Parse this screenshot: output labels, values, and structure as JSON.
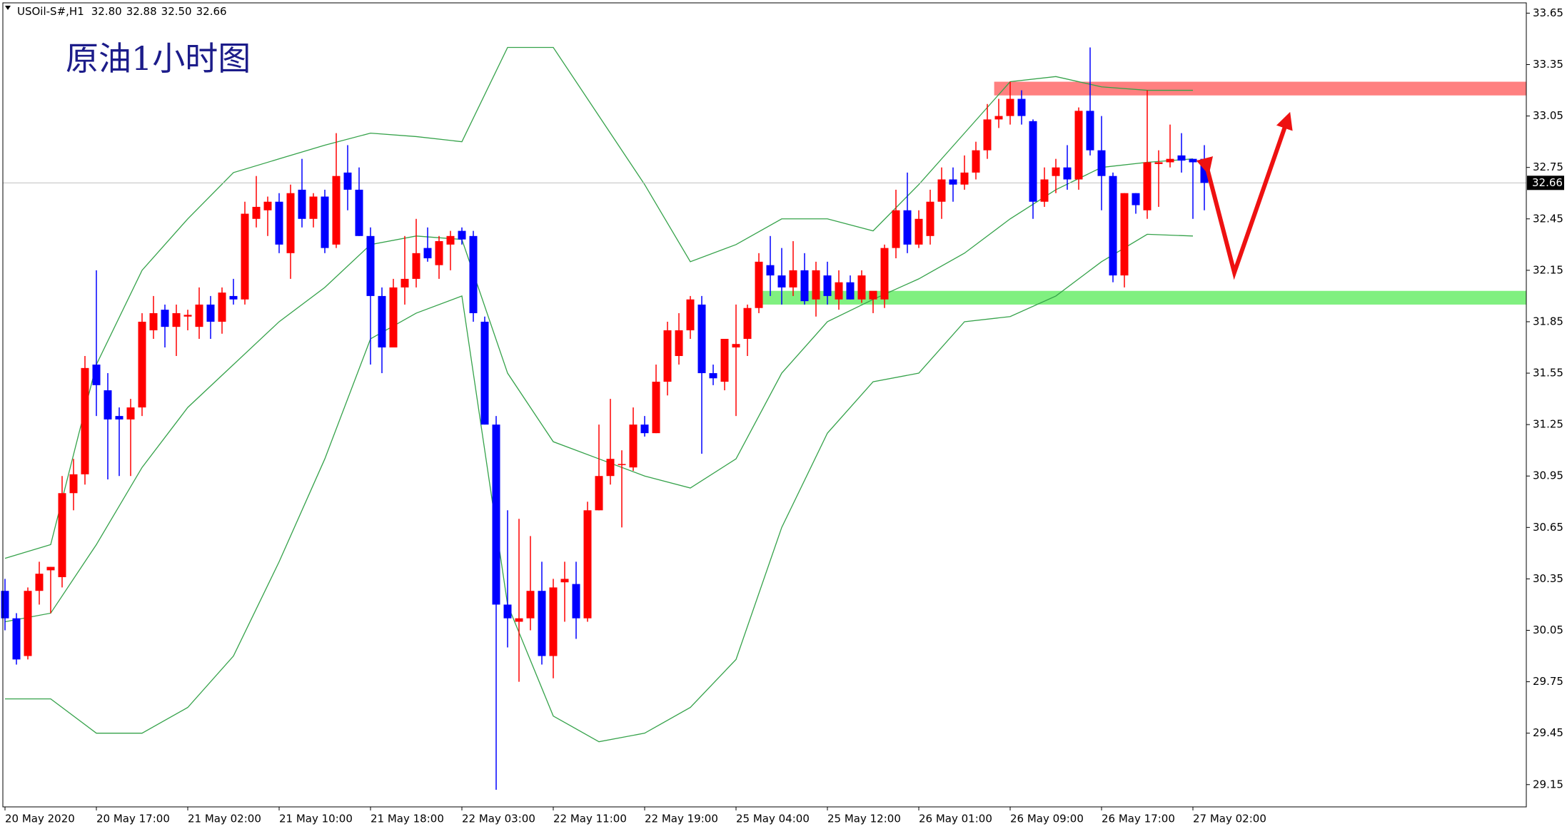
{
  "chart_data": {
    "type": "candlestick",
    "title": "原油1小时图",
    "header": {
      "symbol": "USOil-S#,H1",
      "values": [
        "32.80",
        "32.88",
        "32.50",
        "32.66"
      ]
    },
    "categories": [
      "20 May 2020",
      null,
      null,
      null,
      null,
      null,
      null,
      null,
      "20 May 17:00",
      null,
      null,
      null,
      null,
      null,
      null,
      null,
      "21 May 02:00",
      null,
      null,
      null,
      null,
      null,
      null,
      null,
      "21 May 10:00",
      null,
      null,
      null,
      null,
      null,
      null,
      null,
      "21 May 18:00",
      null,
      null,
      null,
      null,
      null,
      null,
      null,
      "22 May 03:00",
      null,
      null,
      null,
      null,
      null,
      null,
      null,
      "22 May 11:00",
      null,
      null,
      null,
      null,
      null,
      null,
      null,
      "22 May 19:00",
      null,
      null,
      null,
      null,
      null,
      null,
      null,
      "25 May 04:00",
      null,
      null,
      null,
      null,
      null,
      null,
      null,
      "25 May 12:00",
      null,
      null,
      null,
      null,
      null,
      null,
      null,
      "26 May 01:00",
      null,
      null,
      null,
      null,
      null,
      null,
      null,
      "26 May 09:00",
      null,
      null,
      null,
      null,
      null,
      null,
      null,
      "26 May 17:00",
      null,
      null,
      null,
      null,
      null,
      null,
      null,
      "27 May 02:00",
      null
    ],
    "open": [
      30.28,
      30.12,
      29.9,
      30.28,
      30.4,
      30.36,
      30.85,
      30.96,
      31.6,
      31.45,
      31.3,
      31.28,
      31.35,
      31.8,
      31.92,
      31.82,
      31.88,
      31.82,
      31.95,
      31.85,
      32.0,
      31.98,
      32.45,
      32.5,
      32.55,
      32.25,
      32.62,
      32.45,
      32.58,
      32.3,
      32.72,
      32.62,
      32.35,
      32.0,
      31.7,
      32.05,
      32.1,
      32.28,
      32.18,
      32.3,
      32.38,
      32.35,
      31.85,
      31.25,
      30.2,
      30.1,
      30.12,
      30.28,
      29.9,
      30.33,
      30.32,
      30.12,
      30.75,
      30.95,
      31.02,
      31.0,
      31.25,
      31.2,
      31.5,
      31.65,
      31.8,
      31.95,
      31.55,
      31.5,
      31.7,
      31.75,
      31.93,
      32.18,
      32.12,
      32.05,
      32.15,
      31.98,
      32.12,
      31.98,
      32.08,
      31.98,
      31.98,
      31.98,
      32.28,
      32.5,
      32.3,
      32.35,
      32.55,
      32.68,
      32.65,
      32.72,
      32.85,
      33.03,
      33.05,
      33.15,
      33.02,
      32.55,
      32.7,
      32.75,
      32.68,
      33.08,
      32.85,
      32.7,
      32.12,
      32.6,
      32.5,
      32.77,
      32.78,
      32.82,
      32.8,
      32.8
    ],
    "high": [
      30.35,
      30.15,
      30.3,
      30.45,
      30.42,
      30.95,
      31.05,
      31.65,
      32.15,
      31.55,
      31.35,
      31.4,
      31.9,
      32.0,
      31.95,
      31.95,
      31.92,
      32.05,
      32.0,
      32.05,
      32.1,
      32.55,
      32.7,
      32.58,
      32.6,
      32.65,
      32.8,
      32.6,
      32.62,
      32.95,
      32.88,
      32.75,
      32.4,
      32.05,
      32.1,
      32.35,
      32.45,
      32.4,
      32.35,
      32.38,
      32.4,
      32.38,
      31.88,
      31.3,
      30.75,
      30.7,
      30.6,
      30.45,
      30.35,
      30.45,
      30.45,
      30.8,
      31.25,
      31.4,
      31.1,
      31.35,
      31.3,
      31.6,
      31.85,
      31.9,
      32.0,
      32.0,
      31.6,
      31.75,
      31.95,
      31.95,
      32.25,
      32.35,
      32.28,
      32.32,
      32.25,
      32.2,
      32.2,
      32.15,
      32.12,
      32.15,
      32.02,
      32.3,
      32.62,
      32.72,
      32.5,
      32.62,
      32.75,
      32.75,
      32.82,
      32.9,
      33.12,
      33.15,
      33.25,
      33.2,
      33.03,
      32.75,
      32.8,
      32.88,
      33.1,
      33.45,
      33.05,
      32.72,
      32.6,
      32.6,
      33.2,
      32.85,
      33.0,
      32.95,
      32.8,
      32.88
    ],
    "low": [
      30.05,
      29.85,
      29.88,
      30.2,
      30.15,
      30.3,
      30.75,
      30.9,
      31.3,
      30.93,
      30.95,
      30.95,
      31.3,
      31.75,
      31.7,
      31.65,
      31.8,
      31.75,
      31.75,
      31.78,
      31.95,
      31.95,
      32.4,
      32.35,
      32.25,
      32.1,
      32.4,
      32.4,
      32.25,
      32.28,
      32.5,
      32.35,
      31.6,
      31.55,
      31.7,
      31.95,
      32.05,
      32.2,
      32.1,
      32.15,
      32.3,
      31.85,
      31.25,
      29.12,
      29.95,
      29.75,
      30.05,
      29.85,
      29.77,
      30.1,
      30.0,
      30.1,
      30.75,
      30.9,
      30.65,
      30.98,
      31.18,
      31.2,
      31.42,
      31.6,
      31.75,
      31.08,
      31.48,
      31.45,
      31.3,
      31.65,
      31.9,
      32.0,
      31.95,
      32.0,
      31.95,
      31.88,
      31.95,
      31.92,
      31.98,
      31.96,
      31.9,
      31.93,
      32.22,
      32.25,
      32.28,
      32.3,
      32.45,
      32.55,
      32.62,
      32.68,
      32.8,
      32.98,
      33.0,
      33.0,
      32.45,
      32.52,
      32.6,
      32.62,
      32.62,
      32.82,
      32.5,
      32.08,
      32.05,
      32.48,
      32.45,
      32.52,
      32.75,
      32.72,
      32.45,
      32.5
    ],
    "close": [
      30.12,
      29.88,
      30.28,
      30.38,
      30.42,
      30.85,
      30.96,
      31.58,
      31.48,
      31.28,
      31.28,
      31.35,
      31.85,
      31.9,
      31.82,
      31.9,
      31.89,
      31.95,
      31.85,
      32.02,
      31.98,
      32.48,
      32.52,
      32.55,
      32.3,
      32.6,
      32.45,
      32.58,
      32.28,
      32.7,
      32.62,
      32.35,
      32.0,
      31.7,
      32.05,
      32.1,
      32.25,
      32.22,
      32.32,
      32.35,
      32.33,
      31.9,
      31.25,
      30.2,
      30.12,
      30.12,
      30.28,
      29.9,
      30.3,
      30.35,
      30.12,
      30.75,
      30.95,
      31.05,
      31.02,
      31.25,
      31.2,
      31.5,
      31.8,
      31.8,
      31.98,
      31.55,
      31.52,
      31.75,
      31.72,
      31.93,
      32.2,
      32.12,
      32.05,
      32.15,
      31.97,
      32.15,
      32.0,
      32.08,
      31.98,
      32.12,
      32.03,
      32.28,
      32.5,
      32.3,
      32.45,
      32.55,
      32.68,
      32.65,
      32.72,
      32.85,
      33.03,
      33.05,
      33.15,
      33.05,
      32.55,
      32.68,
      32.75,
      32.68,
      33.08,
      32.85,
      32.7,
      32.12,
      32.6,
      32.53,
      32.78,
      32.78,
      32.8,
      32.79,
      32.78,
      32.66
    ],
    "up_color": "#ff0000",
    "down_color": "#0000ff",
    "bands": [
      {
        "color": "#35a24a",
        "x": [
          0,
          4,
          8,
          12,
          16,
          20,
          24,
          28,
          32,
          36,
          40,
          44,
          48,
          52,
          56,
          60,
          64,
          68,
          72,
          76,
          80,
          84,
          88,
          92,
          96,
          100,
          104
        ],
        "values": [
          30.47,
          30.55,
          31.6,
          32.15,
          32.45,
          32.72,
          32.8,
          32.88,
          32.95,
          32.93,
          32.9,
          33.45,
          33.45,
          33.05,
          32.65,
          32.2,
          32.3,
          32.45,
          32.45,
          32.38,
          32.65,
          32.95,
          33.25,
          33.28,
          33.22,
          33.2,
          33.2
        ]
      },
      {
        "color": "#35a24a",
        "x": [
          0,
          4,
          8,
          12,
          16,
          20,
          24,
          28,
          32,
          36,
          40,
          44,
          48,
          52,
          56,
          60,
          64,
          68,
          72,
          76,
          80,
          84,
          88,
          92,
          96,
          100,
          104
        ],
        "values": [
          30.1,
          30.15,
          30.55,
          31.0,
          31.35,
          31.6,
          31.85,
          32.05,
          32.3,
          32.35,
          32.33,
          31.55,
          31.15,
          31.05,
          30.95,
          30.88,
          31.05,
          31.55,
          31.85,
          31.98,
          32.1,
          32.25,
          32.45,
          32.62,
          32.75,
          32.78,
          32.8
        ]
      },
      {
        "color": "#35a24a",
        "x": [
          0,
          4,
          8,
          12,
          16,
          20,
          24,
          28,
          32,
          36,
          40,
          44,
          48,
          52,
          56,
          60,
          64,
          68,
          72,
          76,
          80,
          84,
          88,
          92,
          96,
          100,
          104
        ],
        "values": [
          29.65,
          29.65,
          29.45,
          29.45,
          29.6,
          29.9,
          30.45,
          31.05,
          31.75,
          31.9,
          32.0,
          30.2,
          29.55,
          29.4,
          29.45,
          29.6,
          29.88,
          30.65,
          31.2,
          31.5,
          31.55,
          31.85,
          31.88,
          32.0,
          32.2,
          32.36,
          32.35
        ]
      }
    ],
    "zones": [
      {
        "color": "#ff8080",
        "x": 86.6,
        "ylim": [
          33.17,
          33.25
        ]
      },
      {
        "color": "#80f080",
        "x": 66.2,
        "ylim": [
          31.95,
          32.03
        ]
      }
    ],
    "current_price": 32.66,
    "ylim": [
      29.02,
      33.71
    ],
    "yticks": [
      33.65,
      33.35,
      33.05,
      32.75,
      32.45,
      32.15,
      31.85,
      31.55,
      31.25,
      30.95,
      30.65,
      30.35,
      30.05,
      29.75,
      29.45,
      29.15
    ]
  }
}
